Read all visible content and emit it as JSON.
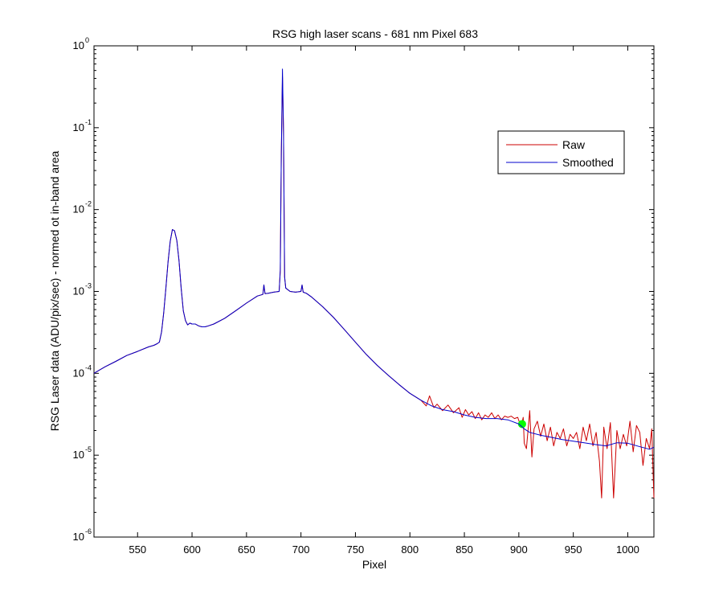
{
  "chart_data": {
    "type": "line",
    "title": "RSG high laser scans  - 681 nm    Pixel 683",
    "xlabel": "Pixel",
    "ylabel": "RSG Laser data (ADU/pix/sec) - normed ot in-band area",
    "xlim": [
      510,
      1024
    ],
    "ylim": [
      1e-06,
      1
    ],
    "yscale": "log",
    "xticks": [
      550,
      600,
      650,
      700,
      750,
      800,
      850,
      900,
      950,
      1000
    ],
    "yticks": [
      {
        "base": "10",
        "exp": "0",
        "value": 1
      },
      {
        "base": "10",
        "exp": "-1",
        "value": 0.1
      },
      {
        "base": "10",
        "exp": "-2",
        "value": 0.01
      },
      {
        "base": "10",
        "exp": "-3",
        "value": 0.001
      },
      {
        "base": "10",
        "exp": "-4",
        "value": 0.0001
      },
      {
        "base": "10",
        "exp": "-5",
        "value": 1e-05
      },
      {
        "base": "10",
        "exp": "-6",
        "value": 1e-06
      }
    ],
    "grid": false,
    "legend_position": "top-right",
    "series": [
      {
        "name": "Raw",
        "color": "#cc0000",
        "x": [
          510,
          520,
          530,
          540,
          550,
          560,
          565,
          568,
          570,
          572,
          574,
          576,
          578,
          580,
          582,
          584,
          586,
          588,
          590,
          592,
          594,
          596,
          598,
          600,
          603,
          606,
          609,
          612,
          615,
          620,
          630,
          640,
          650,
          660,
          665,
          666,
          667,
          670,
          675,
          680,
          681,
          682,
          683,
          684,
          685,
          686,
          690,
          695,
          700,
          701,
          702,
          705,
          710,
          720,
          730,
          740,
          750,
          760,
          770,
          780,
          790,
          800,
          810,
          815,
          818,
          822,
          825,
          830,
          835,
          840,
          845,
          848,
          851,
          854,
          857,
          860,
          863,
          866,
          869,
          872,
          875,
          878,
          881,
          884,
          887,
          890,
          893,
          896,
          899,
          902,
          904,
          905,
          907,
          910,
          912,
          914,
          917,
          920,
          923,
          926,
          929,
          932,
          935,
          938,
          941,
          944,
          947,
          950,
          953,
          956,
          959,
          962,
          965,
          968,
          971,
          974,
          976,
          978,
          981,
          984,
          987,
          990,
          993,
          996,
          999,
          1002,
          1005,
          1008,
          1011,
          1014,
          1017,
          1020,
          1022,
          1024
        ],
        "y": [
          0.0001,
          0.00012,
          0.00014,
          0.000165,
          0.000185,
          0.00021,
          0.00022,
          0.00023,
          0.00024,
          0.00032,
          0.00055,
          0.0011,
          0.0023,
          0.0041,
          0.0057,
          0.0055,
          0.0042,
          0.0024,
          0.0011,
          0.00058,
          0.00044,
          0.00039,
          0.00041,
          0.0004,
          0.0004,
          0.00038,
          0.00037,
          0.00037,
          0.00038,
          0.0004,
          0.00047,
          0.00058,
          0.00072,
          0.00088,
          0.00092,
          0.0012,
          0.00094,
          0.00095,
          0.00098,
          0.001,
          0.0018,
          0.05,
          0.42,
          0.09,
          0.0015,
          0.0011,
          0.001,
          0.00098,
          0.001,
          0.0012,
          0.00098,
          0.00095,
          0.00085,
          0.00065,
          0.00048,
          0.00034,
          0.00024,
          0.00017,
          0.000125,
          9.5e-05,
          7.3e-05,
          5.7e-05,
          4.7e-05,
          4e-05,
          5.3e-05,
          3.8e-05,
          4.2e-05,
          3.5e-05,
          4.1e-05,
          3.3e-05,
          3.8e-05,
          2.9e-05,
          3.6e-05,
          3.1e-05,
          3.4e-05,
          2.8e-05,
          3.3e-05,
          2.7e-05,
          3.1e-05,
          2.9e-05,
          3.3e-05,
          2.8e-05,
          3.1e-05,
          2.7e-05,
          3e-05,
          2.9e-05,
          3e-05,
          2.8e-05,
          2.9e-05,
          2.2e-05,
          2.9e-05,
          1.4e-05,
          1.2e-05,
          3.5e-05,
          9.5e-06,
          2.1e-05,
          2.6e-05,
          1.7e-05,
          2.4e-05,
          1.5e-05,
          2.2e-05,
          1.3e-05,
          1.9e-05,
          1.6e-05,
          2.1e-05,
          1.3e-05,
          1.8e-05,
          1.6e-05,
          1.9e-05,
          1.2e-05,
          2.2e-05,
          1.5e-05,
          2.4e-05,
          1.3e-05,
          1.9e-05,
          8.5e-06,
          3e-06,
          2.2e-05,
          1.2e-05,
          2.5e-05,
          3e-06,
          2e-05,
          1.2e-05,
          1.8e-05,
          1.3e-05,
          2.6e-05,
          1.1e-05,
          2.3e-05,
          1.9e-05,
          7.5e-06,
          1.6e-05,
          1.2e-05,
          2.1e-05,
          3e-06
        ],
        "marker": {
          "x": 903,
          "y": 2.4e-05,
          "color": "#00ff00"
        }
      },
      {
        "name": "Smoothed",
        "color": "#0000cc",
        "x": [
          510,
          520,
          530,
          540,
          550,
          560,
          565,
          568,
          570,
          572,
          574,
          576,
          578,
          580,
          582,
          584,
          586,
          588,
          590,
          592,
          594,
          596,
          598,
          600,
          603,
          606,
          609,
          612,
          615,
          620,
          630,
          640,
          650,
          660,
          665,
          666,
          667,
          670,
          675,
          680,
          681,
          682,
          683,
          684,
          685,
          686,
          690,
          695,
          700,
          701,
          702,
          705,
          710,
          720,
          730,
          740,
          750,
          760,
          770,
          780,
          790,
          800,
          810,
          820,
          830,
          840,
          850,
          860,
          870,
          880,
          890,
          900,
          905,
          910,
          920,
          930,
          940,
          950,
          960,
          970,
          980,
          990,
          1000,
          1010,
          1020,
          1024
        ],
        "y": [
          0.0001,
          0.00012,
          0.00014,
          0.000165,
          0.000185,
          0.00021,
          0.00022,
          0.00023,
          0.00024,
          0.00032,
          0.00055,
          0.0011,
          0.0023,
          0.0041,
          0.0057,
          0.0055,
          0.0042,
          0.0024,
          0.0011,
          0.00058,
          0.00044,
          0.00039,
          0.00041,
          0.0004,
          0.0004,
          0.00038,
          0.00037,
          0.00037,
          0.00038,
          0.0004,
          0.00047,
          0.00058,
          0.00072,
          0.00088,
          0.00092,
          0.0012,
          0.00094,
          0.00095,
          0.00098,
          0.001,
          0.0018,
          0.05,
          0.52,
          0.09,
          0.0015,
          0.0011,
          0.001,
          0.00098,
          0.001,
          0.0012,
          0.00098,
          0.00095,
          0.00085,
          0.00065,
          0.00048,
          0.00034,
          0.00024,
          0.00017,
          0.000125,
          9.5e-05,
          7.3e-05,
          5.7e-05,
          4.7e-05,
          4e-05,
          3.6e-05,
          3.4e-05,
          3.1e-05,
          2.9e-05,
          2.8e-05,
          2.8e-05,
          2.7e-05,
          2.4e-05,
          2.1e-05,
          1.9e-05,
          1.75e-05,
          1.65e-05,
          1.55e-05,
          1.48e-05,
          1.42e-05,
          1.35e-05,
          1.3e-05,
          1.42e-05,
          1.4e-05,
          1.28e-05,
          1.18e-05,
          1.25e-05
        ]
      }
    ]
  }
}
